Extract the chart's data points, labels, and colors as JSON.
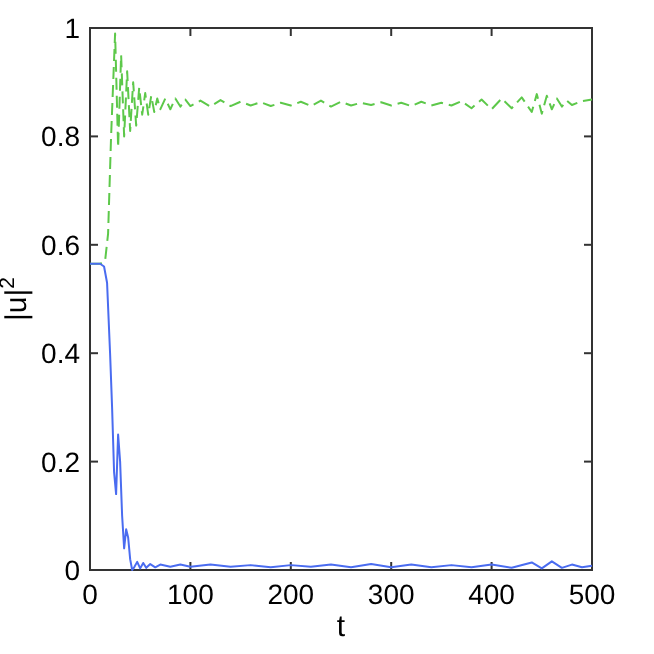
{
  "chart_data": {
    "type": "line",
    "xlabel": "t",
    "ylabel": "|u|$^{2}$",
    "xlim": [
      0,
      500
    ],
    "ylim": [
      0,
      1
    ],
    "xticks": [
      0,
      100,
      200,
      300,
      400,
      500
    ],
    "yticks": [
      0,
      0.2,
      0.4,
      0.6,
      0.8,
      1
    ],
    "grid": false,
    "series": [
      {
        "color": "#5dc84a",
        "line_style": "dashed",
        "x": [
          0,
          10,
          15,
          18,
          21,
          25,
          28,
          31,
          34,
          37,
          40,
          43,
          46,
          49,
          52,
          55,
          58,
          61,
          64,
          67,
          70,
          75,
          80,
          85,
          90,
          95,
          100,
          110,
          120,
          130,
          140,
          150,
          160,
          170,
          180,
          190,
          200,
          210,
          220,
          230,
          240,
          250,
          260,
          270,
          280,
          290,
          300,
          310,
          320,
          330,
          340,
          350,
          360,
          370,
          380,
          390,
          400,
          410,
          420,
          430,
          440,
          445,
          450,
          455,
          460,
          465,
          470,
          475,
          480,
          490,
          500
        ],
        "values": [
          0.565,
          0.565,
          0.57,
          0.62,
          0.8,
          0.99,
          0.78,
          0.95,
          0.8,
          0.92,
          0.81,
          0.9,
          0.82,
          0.89,
          0.84,
          0.88,
          0.84,
          0.875,
          0.845,
          0.87,
          0.85,
          0.87,
          0.85,
          0.87,
          0.855,
          0.868,
          0.856,
          0.866,
          0.855,
          0.867,
          0.856,
          0.864,
          0.857,
          0.863,
          0.856,
          0.862,
          0.857,
          0.864,
          0.856,
          0.866,
          0.855,
          0.864,
          0.857,
          0.862,
          0.858,
          0.863,
          0.857,
          0.862,
          0.856,
          0.864,
          0.857,
          0.862,
          0.857,
          0.865,
          0.852,
          0.868,
          0.85,
          0.87,
          0.852,
          0.872,
          0.845,
          0.878,
          0.842,
          0.875,
          0.85,
          0.87,
          0.855,
          0.866,
          0.858,
          0.865,
          0.868
        ]
      },
      {
        "color": "#4a6cf0",
        "line_style": "solid",
        "x": [
          0,
          10,
          14,
          17,
          20,
          22,
          24,
          26,
          28,
          30,
          32,
          34,
          36,
          38,
          40,
          42,
          44,
          47,
          50,
          53,
          56,
          60,
          65,
          70,
          80,
          90,
          100,
          120,
          140,
          160,
          180,
          200,
          220,
          240,
          260,
          280,
          300,
          320,
          340,
          360,
          380,
          400,
          420,
          440,
          450,
          460,
          470,
          480,
          490,
          500
        ],
        "values": [
          0.565,
          0.565,
          0.56,
          0.53,
          0.4,
          0.3,
          0.18,
          0.14,
          0.25,
          0.2,
          0.1,
          0.04,
          0.075,
          0.06,
          0.02,
          0.0,
          0.005,
          0.015,
          0.003,
          0.013,
          0.004,
          0.011,
          0.005,
          0.01,
          0.006,
          0.01,
          0.006,
          0.01,
          0.006,
          0.009,
          0.005,
          0.009,
          0.006,
          0.01,
          0.005,
          0.011,
          0.005,
          0.01,
          0.005,
          0.009,
          0.005,
          0.01,
          0.004,
          0.014,
          0.003,
          0.016,
          0.004,
          0.01,
          0.005,
          0.008
        ]
      }
    ]
  }
}
